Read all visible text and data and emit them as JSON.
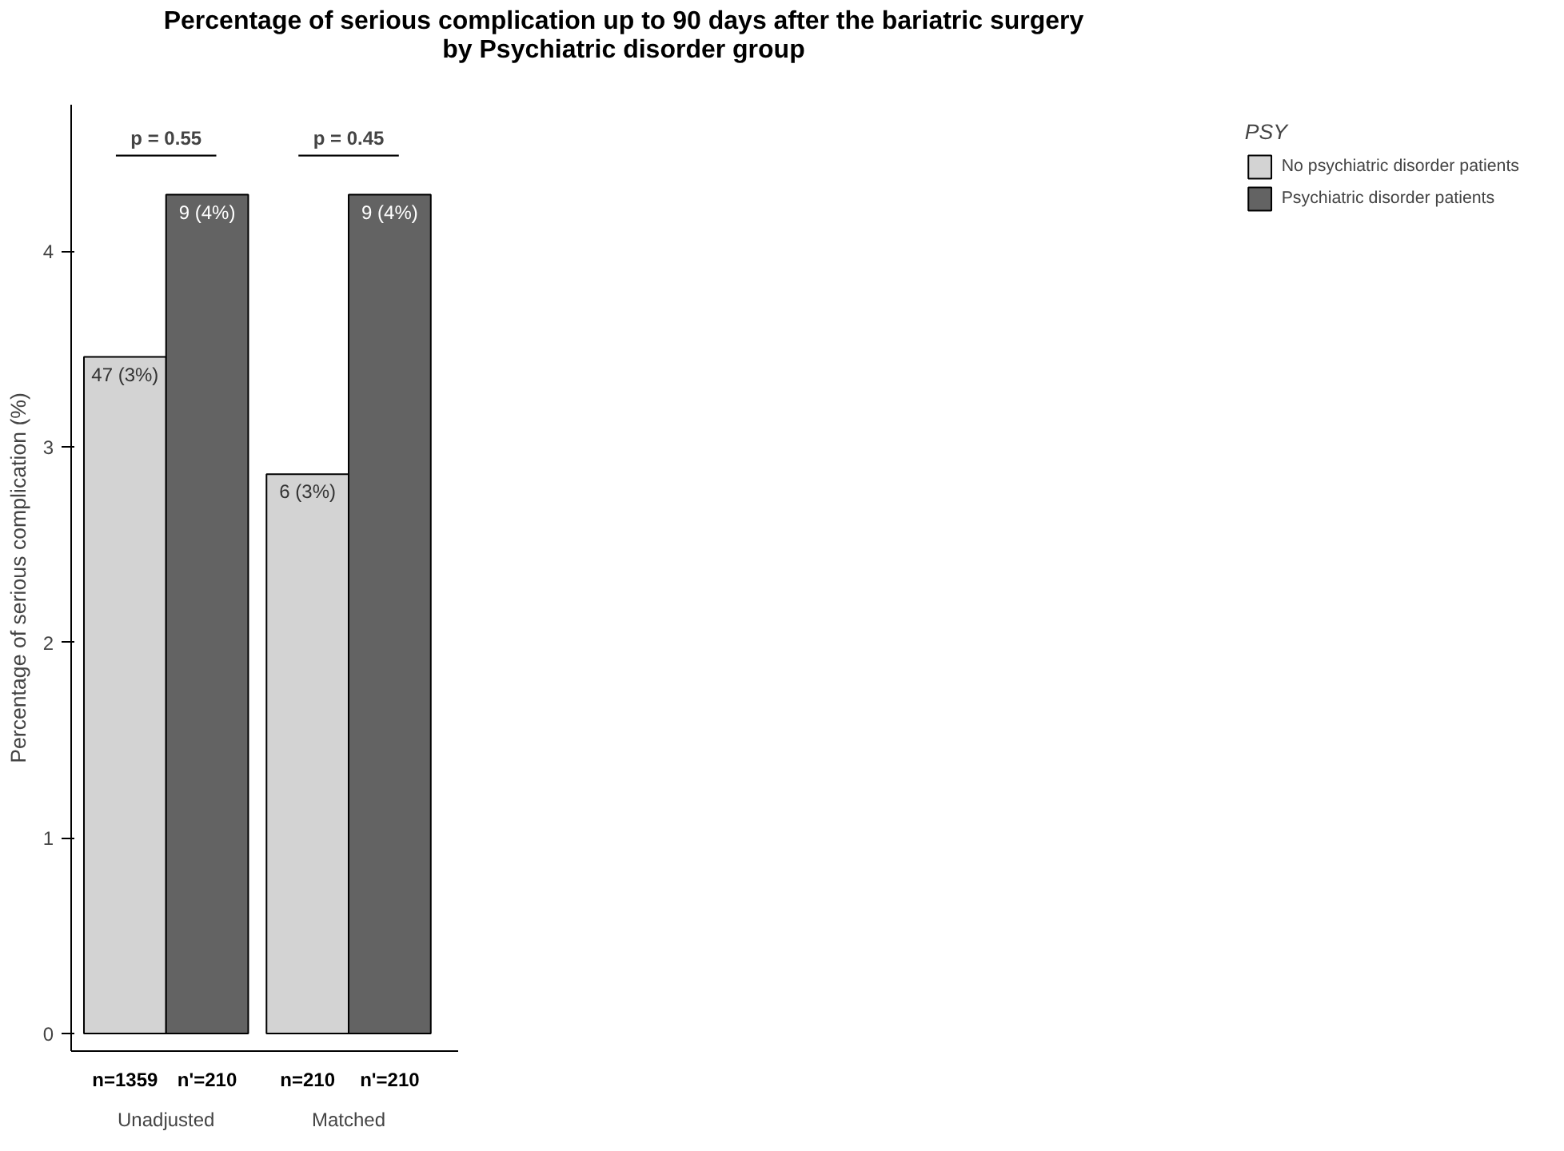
{
  "chart_data": {
    "type": "bar",
    "title": "Percentage of serious complication up to 90 days after the bariatric surgery\nby Psychiatric disorder group",
    "ylabel": "Percentage of serious complication (%)",
    "legend_title": "PSY",
    "categories": [
      "Unadjusted",
      "Matched"
    ],
    "series": [
      {
        "name": "No psychiatric disorder patients",
        "color": "#d3d3d3",
        "values": [
          3.46,
          2.86
        ],
        "value_labels": [
          "47 (3%)",
          "6 (3%)"
        ]
      },
      {
        "name": "Psychiatric disorder patients",
        "color": "#636363",
        "values": [
          4.29,
          4.29
        ],
        "value_labels": [
          "9 (4%)",
          "9 (4%)"
        ]
      }
    ],
    "ylim": [
      -0.09,
      4.75
    ],
    "yticks": [
      0,
      1,
      2,
      3,
      4
    ],
    "grid": false,
    "legend": "right",
    "annotations": [
      "p = 0.55",
      "p = 0.45",
      "n=1359",
      "n'=210",
      "n=210",
      "n'=210"
    ]
  }
}
